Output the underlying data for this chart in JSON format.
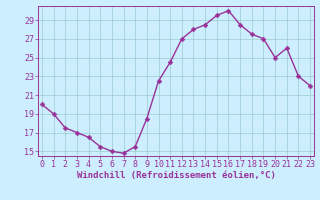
{
  "x": [
    0,
    1,
    2,
    3,
    4,
    5,
    6,
    7,
    8,
    9,
    10,
    11,
    12,
    13,
    14,
    15,
    16,
    17,
    18,
    19,
    20,
    21,
    22,
    23
  ],
  "y": [
    20.0,
    19.0,
    17.5,
    17.0,
    16.5,
    15.5,
    15.0,
    14.8,
    15.5,
    18.5,
    22.5,
    24.5,
    27.0,
    28.0,
    28.5,
    29.5,
    30.0,
    28.5,
    27.5,
    27.0,
    25.0,
    26.0,
    23.0,
    22.0
  ],
  "line_color": "#993399",
  "marker_color": "#993399",
  "bg_color": "#cceeff",
  "grid_color": "#99cccc",
  "axis_color": "#993399",
  "tick_color": "#993399",
  "xlabel": "Windchill (Refroidissement éolien,°C)",
  "xlim": [
    0,
    23
  ],
  "ylim": [
    14.5,
    30.5
  ],
  "yticks": [
    15,
    17,
    19,
    21,
    23,
    25,
    27,
    29
  ],
  "xticks": [
    0,
    1,
    2,
    3,
    4,
    5,
    6,
    7,
    8,
    9,
    10,
    11,
    12,
    13,
    14,
    15,
    16,
    17,
    18,
    19,
    20,
    21,
    22,
    23
  ],
  "xtick_labels": [
    "0",
    "1",
    "2",
    "3",
    "4",
    "5",
    "6",
    "7",
    "8",
    "9",
    "10",
    "11",
    "12",
    "13",
    "14",
    "15",
    "16",
    "17",
    "18",
    "19",
    "20",
    "21",
    "22",
    "23"
  ],
  "label_fontsize": 6.5,
  "tick_fontsize": 6.0,
  "linewidth": 1.0,
  "markersize": 2.5
}
